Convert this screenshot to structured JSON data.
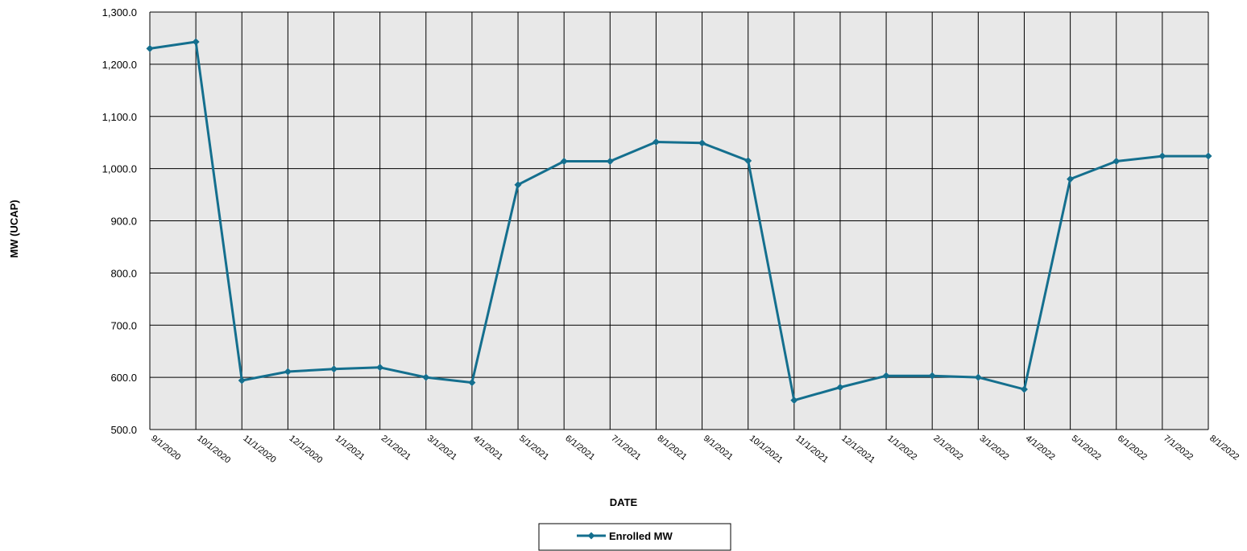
{
  "chart_data": {
    "type": "line",
    "xlabel": "DATE",
    "ylabel": "MW (UCAP)",
    "ylim": [
      500,
      1300
    ],
    "y_ticks": [
      "500.0",
      "600.0",
      "700.0",
      "800.0",
      "900.0",
      "1,000.0",
      "1,100.0",
      "1,200.0",
      "1,300.0"
    ],
    "y_tick_values": [
      500,
      600,
      700,
      800,
      900,
      1000,
      1100,
      1200,
      1300
    ],
    "categories": [
      "9/1/2020",
      "10/1/2020",
      "11/1/2020",
      "12/1/2020",
      "1/1/2021",
      "2/1/2021",
      "3/1/2021",
      "4/1/2021",
      "5/1/2021",
      "6/1/2021",
      "7/1/2021",
      "8/1/2021",
      "9/1/2021",
      "10/1/2021",
      "11/1/2021",
      "12/1/2021",
      "1/1/2022",
      "2/1/2022",
      "3/1/2022",
      "4/1/2022",
      "5/1/2022",
      "6/1/2022",
      "7/1/2022",
      "8/1/2022"
    ],
    "series": [
      {
        "name": "Enrolled MW",
        "values": [
          1230,
          1243,
          594,
          611,
          616,
          619,
          600,
          590,
          969,
          1014,
          1014,
          1051,
          1049,
          1015,
          556,
          581,
          603,
          603,
          600,
          577,
          980,
          1014,
          1024,
          1024
        ]
      }
    ],
    "grid": true,
    "legend": "bottom-center",
    "colors": {
      "line": "#146f8e",
      "plot_bg": "#e8e8e8",
      "grid": "#000000"
    }
  }
}
